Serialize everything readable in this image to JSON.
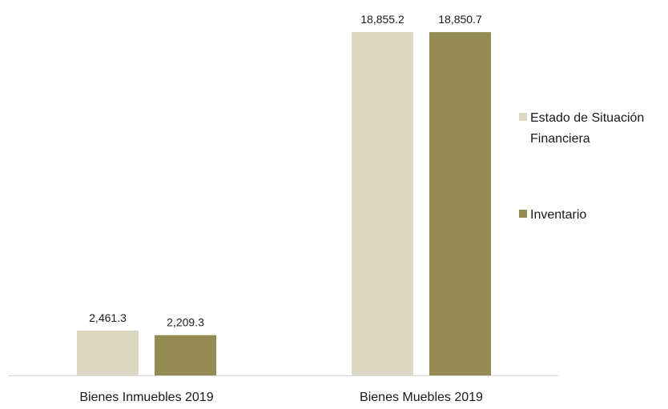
{
  "chart_data": {
    "type": "bar",
    "categories": [
      "Bienes Inmuebles 2019",
      "Bienes Muebles 2019"
    ],
    "series": [
      {
        "name": "Estado de Situación Financiera",
        "values": [
          2461.3,
          18855.2
        ],
        "labels": [
          "2,461.3",
          "18,855.2"
        ],
        "color": "#ddd8c3"
      },
      {
        "name": "Inventario",
        "values": [
          2209.3,
          18850.7
        ],
        "labels": [
          "2,209.3",
          "18,850.7"
        ],
        "color": "#948a54"
      }
    ],
    "legend": {
      "position": "right",
      "entries": [
        {
          "lines": [
            "Estado de Situación",
            "Financiera"
          ]
        },
        {
          "lines": [
            "Inventario"
          ]
        }
      ]
    },
    "ylim": [
      0,
      18855.2
    ],
    "grid": false,
    "axis_color": "#d9d9d9"
  }
}
